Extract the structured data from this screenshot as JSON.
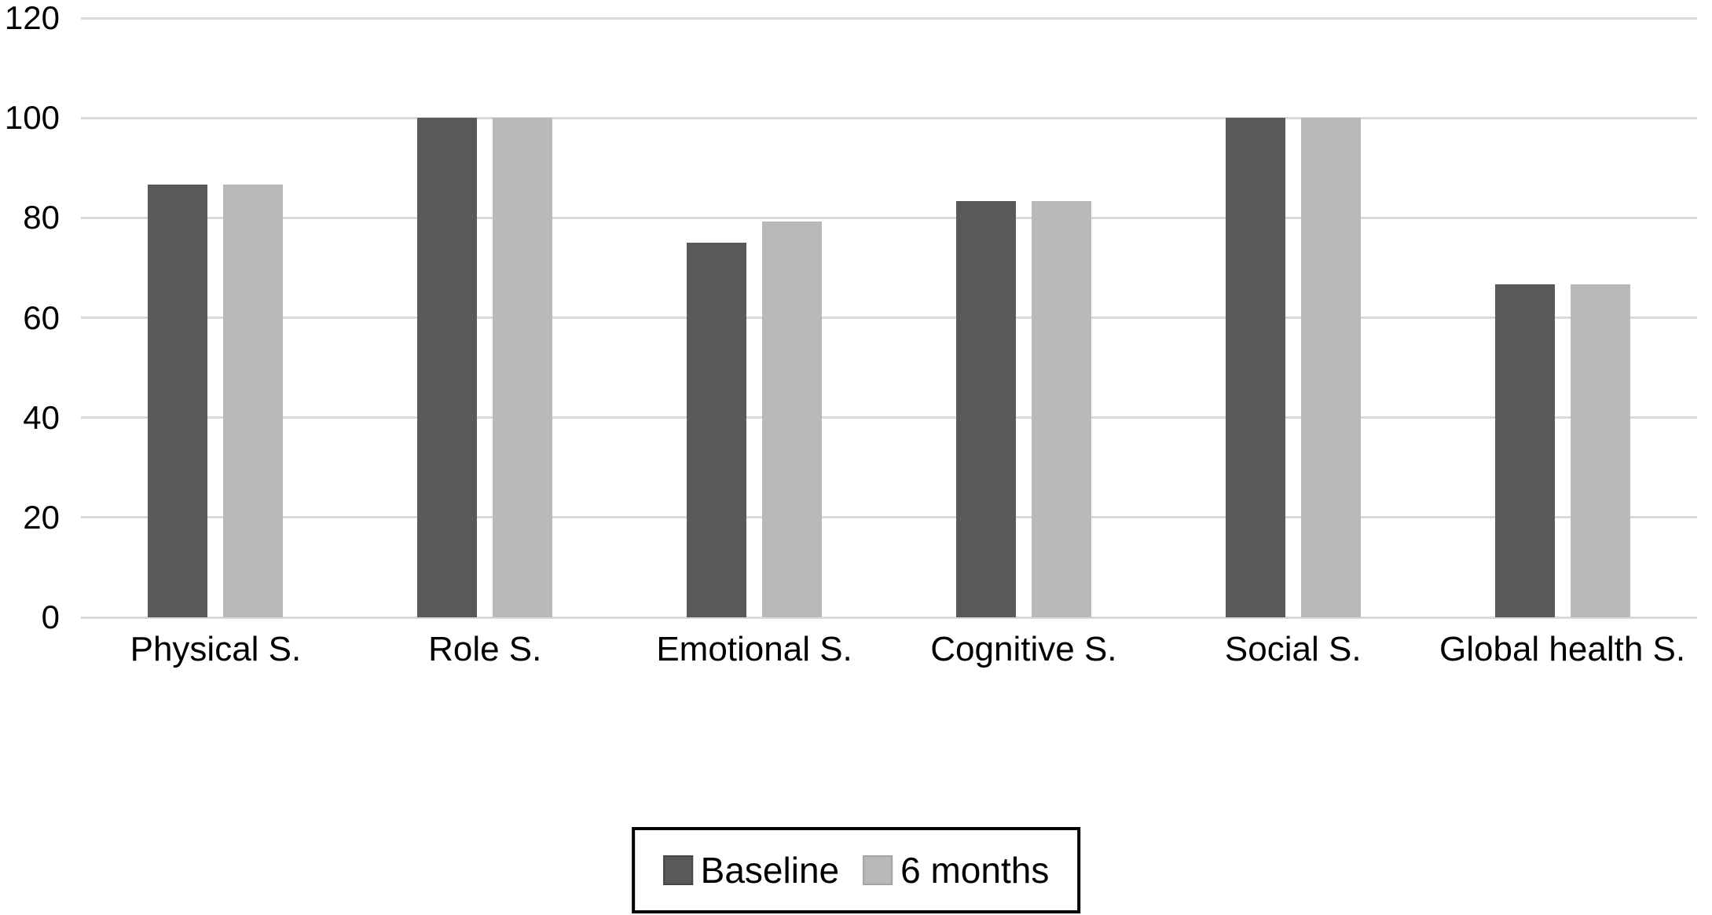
{
  "chart_data": {
    "type": "bar",
    "title": "",
    "xlabel": "",
    "ylabel": "",
    "categories": [
      "Physical S.",
      "Role S.",
      "Emotional S.",
      "Cognitive S.",
      "Social S.",
      "Global health S."
    ],
    "series": [
      {
        "name": "Baseline",
        "color": "#595959",
        "swatch_border": "#454545",
        "values": [
          86.7,
          100,
          75,
          83.3,
          100,
          66.7
        ]
      },
      {
        "name": "6 months",
        "color": "#b9b9b9",
        "swatch_border": "#a3a3a3",
        "values": [
          86.7,
          100,
          79.2,
          83.3,
          100,
          66.7
        ]
      }
    ],
    "ylim": [
      0,
      120
    ],
    "yticks": [
      0,
      20,
      40,
      60,
      80,
      100,
      120
    ],
    "grid": true,
    "gridline_color": "#d9d9d9",
    "background_color": "#ffffff",
    "text_color": "#000000",
    "legend_position": "bottom-center",
    "legend_border_color": "#000000"
  },
  "legend": {
    "items": [
      {
        "label": "Baseline"
      },
      {
        "label": "6 months"
      }
    ]
  }
}
